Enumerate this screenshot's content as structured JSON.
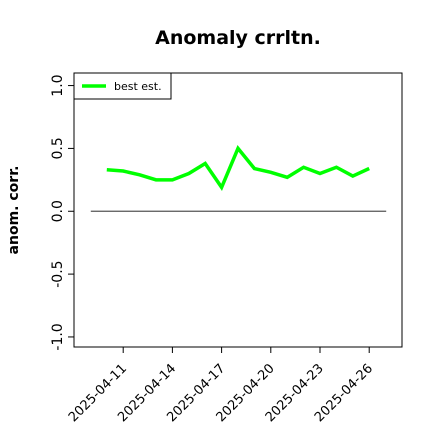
{
  "chart_data": {
    "type": "line",
    "title": "Anomaly crrltn.",
    "y_label": "anom. corr.",
    "x": [
      "2025-04-10",
      "2025-04-11",
      "2025-04-12",
      "2025-04-13",
      "2025-04-14",
      "2025-04-15",
      "2025-04-16",
      "2025-04-17",
      "2025-04-18",
      "2025-04-19",
      "2025-04-20",
      "2025-04-21",
      "2025-04-22",
      "2025-04-23",
      "2025-04-24",
      "2025-04-25",
      "2025-04-26"
    ],
    "series": [
      {
        "name": "best est.",
        "color": "#00ff00",
        "values": [
          0.33,
          0.32,
          0.29,
          0.25,
          0.25,
          0.3,
          0.38,
          0.19,
          0.5,
          0.34,
          0.31,
          0.27,
          0.35,
          0.3,
          0.35,
          0.28,
          0.34
        ]
      }
    ],
    "reference_line": 0,
    "xlim": [
      "2025-04-08",
      "2025-04-28"
    ],
    "xticks": [
      "2025-04-11",
      "2025-04-14",
      "2025-04-17",
      "2025-04-20",
      "2025-04-23",
      "2025-04-26"
    ],
    "ylim": [
      -1.08,
      1.1
    ],
    "yticks": [
      {
        "value": -1,
        "label": "-1.0"
      },
      {
        "value": -0.5,
        "label": "-0.5"
      },
      {
        "value": 0,
        "label": "0.0"
      },
      {
        "value": 0.5,
        "label": "0.5"
      },
      {
        "value": 1,
        "label": "1.0"
      }
    ],
    "legend": "top-left"
  }
}
